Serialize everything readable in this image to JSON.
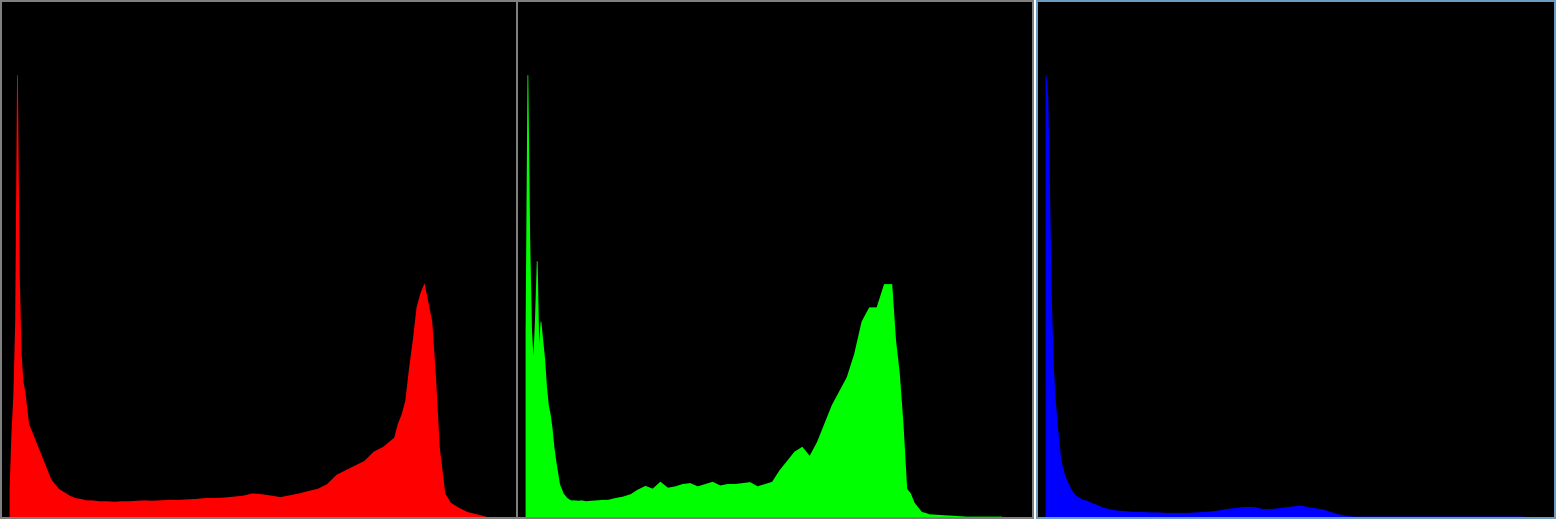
{
  "chart_data": [
    {
      "type": "area",
      "channel": "red",
      "color": "#ff0000",
      "xlim": [
        0,
        255
      ],
      "ylim": [
        0,
        1
      ],
      "grid": false,
      "x": [
        0,
        1,
        2,
        3,
        4,
        5,
        6,
        7,
        8,
        10,
        12,
        14,
        16,
        18,
        20,
        22,
        24,
        26,
        28,
        30,
        32,
        35,
        38,
        41,
        44,
        48,
        52,
        56,
        60,
        64,
        68,
        72,
        76,
        80,
        85,
        90,
        95,
        100,
        105,
        110,
        115,
        120,
        125,
        130,
        135,
        140,
        145,
        150,
        155,
        160,
        165,
        170,
        175,
        180,
        185,
        190,
        195,
        200,
        203,
        206,
        208,
        210,
        212,
        214,
        216,
        218,
        220,
        222,
        224,
        226,
        228,
        230,
        233,
        236,
        240,
        245,
        250,
        255
      ],
      "values": [
        0.06,
        0.18,
        0.26,
        0.42,
        0.95,
        0.52,
        0.35,
        0.29,
        0.27,
        0.2,
        0.18,
        0.16,
        0.14,
        0.12,
        0.1,
        0.08,
        0.07,
        0.06,
        0.055,
        0.05,
        0.045,
        0.04,
        0.038,
        0.035,
        0.035,
        0.033,
        0.033,
        0.032,
        0.033,
        0.033,
        0.034,
        0.035,
        0.034,
        0.035,
        0.036,
        0.036,
        0.037,
        0.038,
        0.04,
        0.04,
        0.041,
        0.043,
        0.045,
        0.05,
        0.048,
        0.045,
        0.042,
        0.046,
        0.05,
        0.055,
        0.06,
        0.07,
        0.09,
        0.1,
        0.11,
        0.12,
        0.14,
        0.15,
        0.16,
        0.17,
        0.2,
        0.22,
        0.25,
        0.32,
        0.38,
        0.45,
        0.48,
        0.5,
        0.46,
        0.42,
        0.3,
        0.15,
        0.05,
        0.03,
        0.02,
        0.01,
        0.005,
        0
      ]
    },
    {
      "type": "area",
      "channel": "green",
      "color": "#00ff00",
      "xlim": [
        0,
        255
      ],
      "ylim": [
        0,
        1
      ],
      "grid": false,
      "x": [
        0,
        1,
        2,
        3,
        4,
        5,
        6,
        7,
        8,
        9,
        10,
        11,
        12,
        13,
        14,
        15,
        16,
        18,
        20,
        22,
        24,
        26,
        28,
        30,
        32,
        35,
        38,
        41,
        44,
        48,
        52,
        56,
        60,
        64,
        68,
        72,
        76,
        80,
        84,
        88,
        92,
        96,
        100,
        104,
        108,
        112,
        116,
        120,
        124,
        128,
        132,
        136,
        140,
        144,
        148,
        152,
        156,
        160,
        164,
        168,
        172,
        176,
        180,
        184,
        188,
        192,
        196,
        198,
        200,
        202,
        204,
        206,
        208,
        210,
        212,
        214,
        216,
        220,
        224,
        228,
        232,
        236,
        240,
        244,
        248,
        255
      ],
      "values": [
        0.4,
        0.95,
        0.6,
        0.4,
        0.33,
        0.42,
        0.55,
        0.35,
        0.42,
        0.38,
        0.34,
        0.28,
        0.24,
        0.22,
        0.19,
        0.15,
        0.12,
        0.07,
        0.05,
        0.04,
        0.035,
        0.035,
        0.034,
        0.035,
        0.033,
        0.034,
        0.035,
        0.036,
        0.036,
        0.04,
        0.043,
        0.048,
        0.058,
        0.066,
        0.06,
        0.075,
        0.062,
        0.065,
        0.07,
        0.072,
        0.065,
        0.07,
        0.075,
        0.067,
        0.07,
        0.07,
        0.072,
        0.074,
        0.065,
        0.07,
        0.075,
        0.1,
        0.12,
        0.14,
        0.15,
        0.13,
        0.16,
        0.2,
        0.24,
        0.27,
        0.3,
        0.35,
        0.42,
        0.45,
        0.45,
        0.5,
        0.5,
        0.38,
        0.31,
        0.2,
        0.06,
        0.05,
        0.03,
        0.02,
        0.01,
        0.008,
        0.005,
        0.004,
        0.003,
        0.002,
        0.001,
        0,
        0,
        0,
        0,
        0
      ]
    },
    {
      "type": "area",
      "channel": "blue",
      "color": "#0000ff",
      "xlim": [
        0,
        255
      ],
      "ylim": [
        0,
        1
      ],
      "grid": false,
      "x": [
        0,
        1,
        2,
        3,
        4,
        5,
        6,
        7,
        8,
        10,
        12,
        14,
        16,
        18,
        20,
        22,
        24,
        26,
        28,
        30,
        32,
        35,
        38,
        41,
        44,
        48,
        52,
        56,
        60,
        64,
        68,
        72,
        76,
        80,
        84,
        88,
        92,
        96,
        100,
        104,
        108,
        112,
        116,
        120,
        124,
        128,
        132,
        136,
        140,
        144,
        148,
        152,
        156,
        160,
        164,
        168,
        172,
        176,
        180,
        184,
        188,
        192,
        196,
        200,
        204,
        208,
        212,
        216,
        220,
        224,
        228,
        232,
        236,
        240,
        244,
        248,
        252,
        255
      ],
      "values": [
        0.95,
        0.9,
        0.68,
        0.45,
        0.32,
        0.25,
        0.2,
        0.16,
        0.12,
        0.09,
        0.07,
        0.055,
        0.045,
        0.04,
        0.036,
        0.034,
        0.03,
        0.027,
        0.024,
        0.02,
        0.018,
        0.015,
        0.013,
        0.012,
        0.011,
        0.01,
        0.01,
        0.009,
        0.009,
        0.008,
        0.008,
        0.008,
        0.008,
        0.009,
        0.01,
        0.011,
        0.013,
        0.016,
        0.018,
        0.02,
        0.021,
        0.02,
        0.016,
        0.016,
        0.018,
        0.02,
        0.022,
        0.024,
        0.02,
        0.018,
        0.015,
        0.01,
        0.005,
        0.002,
        0,
        0,
        0,
        0,
        0,
        0,
        0,
        0,
        0,
        0,
        0,
        0,
        0,
        0,
        0,
        0,
        0,
        0,
        0,
        0,
        0,
        0,
        0,
        0
      ]
    }
  ]
}
